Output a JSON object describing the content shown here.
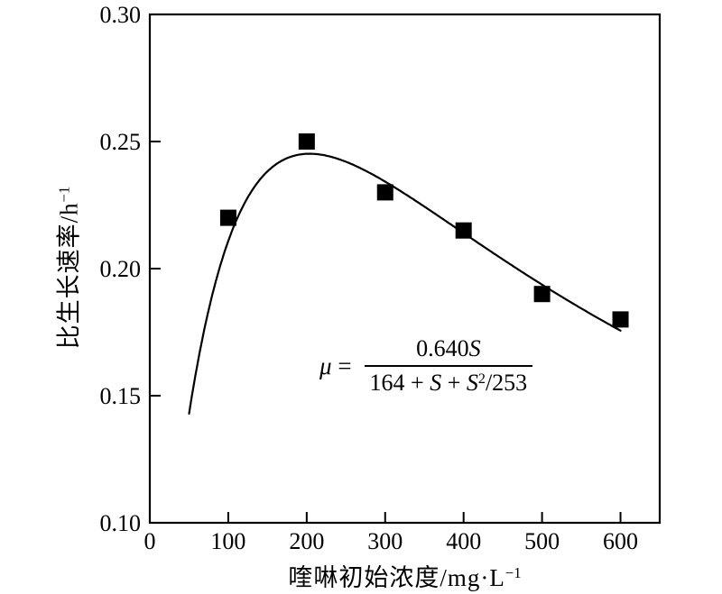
{
  "figure": {
    "background": "#ffffff",
    "y_axis_title": {
      "full": "比生长速率/h⁻¹",
      "main": "比生长速率/h",
      "sup": "−1"
    },
    "x_axis_title": {
      "full": "喹啉初始浓度/mg·L⁻¹",
      "main": "喹啉初始浓度/mg·L",
      "sup": "−1"
    },
    "equation": {
      "full": "μ = 0.640S/(164 + S + S²/253)",
      "mu": "μ",
      "equals": "=",
      "num_coef": "0.640",
      "s_var": "S",
      "den_first": "164",
      "plus": "+",
      "den_sup": "2",
      "den_tail": "/253"
    }
  },
  "chart_data": {
    "type": "scatter",
    "title": "",
    "xlabel": "喹啉初始浓度/mg·L⁻¹",
    "ylabel": "比生长速率/h⁻¹",
    "xlim": [
      0,
      650
    ],
    "ylim": [
      0.1,
      0.3
    ],
    "x_ticks": [
      0,
      100,
      200,
      300,
      400,
      500,
      600
    ],
    "x_tick_labels": [
      "0",
      "100",
      "200",
      "300",
      "400",
      "500",
      "600"
    ],
    "y_ticks": [
      0.1,
      0.15,
      0.2,
      0.25,
      0.3
    ],
    "y_tick_labels": [
      "0.10",
      "0.15",
      "0.20",
      "0.25",
      "0.30"
    ],
    "grid": false,
    "legend": "none",
    "marker": "filled-square",
    "colors": {
      "marker": "#000000",
      "curve": "#000000",
      "axis": "#000000",
      "background": "#ffffff"
    },
    "points": [
      {
        "x": 100,
        "y": 0.22
      },
      {
        "x": 200,
        "y": 0.25
      },
      {
        "x": 300,
        "y": 0.23
      },
      {
        "x": 400,
        "y": 0.215
      },
      {
        "x": 500,
        "y": 0.19
      },
      {
        "x": 600,
        "y": 0.18
      }
    ],
    "fit_curve": {
      "model": "Haldane substrate inhibition",
      "equation": "μ = 0.640S/(164 + S + S²/253)",
      "mu_max": 0.64,
      "Ks": 164,
      "Ki": 253,
      "s_range": [
        50,
        600
      ]
    }
  }
}
